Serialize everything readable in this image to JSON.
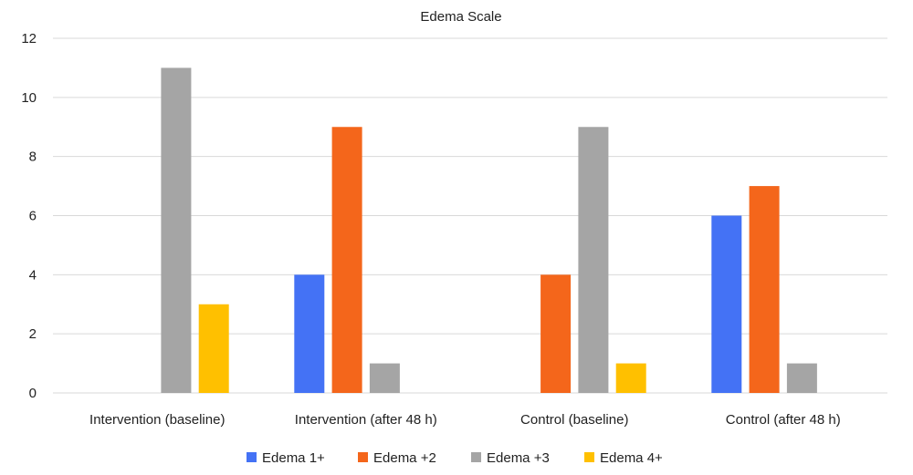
{
  "chart_data": {
    "type": "bar",
    "title": "Edema Scale",
    "categories": [
      "Intervention (baseline)",
      "Intervention (after 48 h)",
      "Control (baseline)",
      "Control (after 48 h)"
    ],
    "series": [
      {
        "name": "Edema 1+",
        "color": "#4472f5",
        "values": [
          0,
          4,
          0,
          6
        ]
      },
      {
        "name": "Edema +2",
        "color": "#f4661b",
        "values": [
          0,
          9,
          4,
          7
        ]
      },
      {
        "name": "Edema +3",
        "color": "#a5a5a5",
        "values": [
          11,
          1,
          9,
          1
        ]
      },
      {
        "name": "Edema 4+",
        "color": "#ffc000",
        "values": [
          3,
          0,
          1,
          0
        ]
      }
    ],
    "ylim": [
      0,
      12
    ],
    "yticks": [
      0,
      2,
      4,
      6,
      8,
      10,
      12
    ],
    "xlabel": "",
    "ylabel": "",
    "grid": true,
    "legend_position": "bottom"
  }
}
